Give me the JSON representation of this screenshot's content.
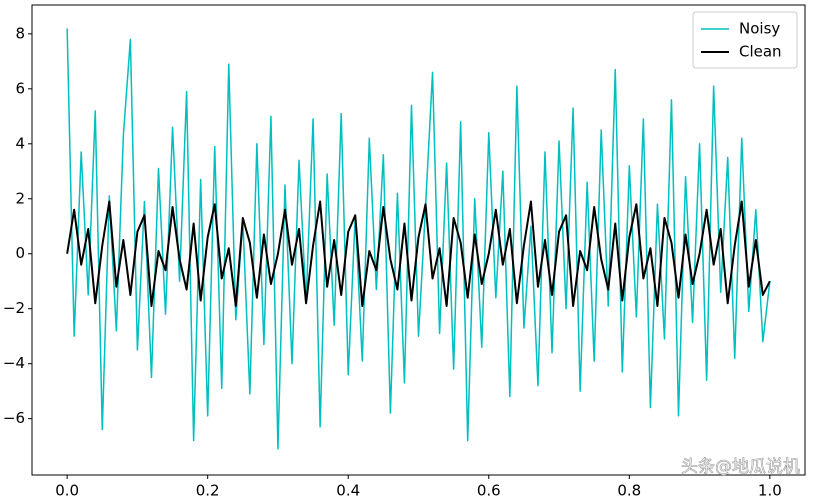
{
  "chart_data": {
    "type": "line",
    "x": [
      0,
      0.01,
      0.02,
      0.03,
      0.04,
      0.05,
      0.06,
      0.07,
      0.08,
      0.09,
      0.1,
      0.11,
      0.12,
      0.13,
      0.14,
      0.15,
      0.16,
      0.17,
      0.18,
      0.19,
      0.2,
      0.21,
      0.22,
      0.23,
      0.24,
      0.25,
      0.26,
      0.27,
      0.28,
      0.29,
      0.3,
      0.31,
      0.32,
      0.33,
      0.34,
      0.35,
      0.36,
      0.37,
      0.38,
      0.39,
      0.4,
      0.41,
      0.42,
      0.43,
      0.44,
      0.45,
      0.46,
      0.47,
      0.48,
      0.49,
      0.5,
      0.51,
      0.52,
      0.53,
      0.54,
      0.55,
      0.56,
      0.57,
      0.58,
      0.59,
      0.6,
      0.61,
      0.62,
      0.63,
      0.64,
      0.65,
      0.66,
      0.67,
      0.68,
      0.69,
      0.7,
      0.71,
      0.72,
      0.73,
      0.74,
      0.75,
      0.76,
      0.77,
      0.78,
      0.79,
      0.8,
      0.81,
      0.82,
      0.83,
      0.84,
      0.85,
      0.86,
      0.87,
      0.88,
      0.89,
      0.9,
      0.91,
      0.92,
      0.93,
      0.94,
      0.95,
      0.96,
      0.97,
      0.98,
      0.99,
      1.0
    ],
    "series": [
      {
        "name": "Noisy",
        "color": "#00bfbf",
        "width": 1.5,
        "values": [
          8.2,
          -3.0,
          3.7,
          -1.5,
          5.2,
          -6.4,
          2.1,
          -2.8,
          4.3,
          7.8,
          -3.5,
          1.9,
          -4.5,
          3.1,
          -2.2,
          4.6,
          -1.0,
          5.9,
          -6.8,
          2.7,
          -5.9,
          3.9,
          -4.9,
          6.9,
          -2.4,
          1.2,
          -5.1,
          4.0,
          -3.3,
          5.0,
          -7.1,
          2.5,
          -4.0,
          3.4,
          -1.8,
          4.9,
          -6.3,
          2.9,
          -2.6,
          5.1,
          -4.4,
          1.4,
          -3.9,
          4.2,
          -1.3,
          3.6,
          -5.8,
          2.2,
          -4.7,
          5.4,
          -3.0,
          1.7,
          6.6,
          -2.9,
          3.3,
          -4.2,
          4.8,
          -6.8,
          2.0,
          -3.4,
          4.4,
          -1.6,
          3.0,
          -5.2,
          6.1,
          -2.7,
          1.0,
          -4.8,
          3.7,
          -3.6,
          4.1,
          -2.0,
          5.3,
          -5.0,
          2.6,
          -3.9,
          4.5,
          -1.9,
          6.7,
          -4.3,
          3.2,
          -2.3,
          4.9,
          -5.6,
          1.8,
          -3.1,
          5.6,
          -5.9,
          2.8,
          -2.5,
          4.0,
          -4.6,
          6.1,
          -1.4,
          3.5,
          -3.8,
          4.2,
          -2.1,
          1.6,
          -3.2,
          -1.0
        ]
      },
      {
        "name": "Clean",
        "color": "#000000",
        "width": 2,
        "values": [
          0,
          1.6,
          -0.4,
          0.9,
          -1.8,
          0.3,
          1.9,
          -1.2,
          0.5,
          -1.5,
          0.8,
          1.4,
          -1.9,
          0.1,
          -0.6,
          1.7,
          -0.2,
          -1.3,
          1.1,
          -1.7,
          0.6,
          1.8,
          -0.9,
          0.2,
          -1.9,
          1.3,
          0.4,
          -1.6,
          0.7,
          -1.1,
          0,
          1.6,
          -0.4,
          0.9,
          -1.8,
          0.3,
          1.9,
          -1.2,
          0.5,
          -1.5,
          0.8,
          1.4,
          -1.9,
          0.1,
          -0.6,
          1.7,
          -0.2,
          -1.3,
          1.1,
          -1.7,
          0.6,
          1.8,
          -0.9,
          0.2,
          -1.9,
          1.3,
          0.4,
          -1.6,
          0.7,
          -1.1,
          0,
          1.6,
          -0.4,
          0.9,
          -1.8,
          0.3,
          1.9,
          -1.2,
          0.5,
          -1.5,
          0.8,
          1.4,
          -1.9,
          0.1,
          -0.6,
          1.7,
          -0.2,
          -1.3,
          1.1,
          -1.7,
          0.6,
          1.8,
          -0.9,
          0.2,
          -1.9,
          1.3,
          0.4,
          -1.6,
          0.7,
          -1.1,
          0,
          1.6,
          -0.4,
          0.9,
          -1.8,
          0.3,
          1.9,
          -1.2,
          0.5,
          -1.5,
          -1.0
        ]
      }
    ],
    "xlim": [
      -0.05,
      1.05
    ],
    "xticks": [
      {
        "value": 0,
        "label": "0.0"
      },
      {
        "value": 0.2,
        "label": "0.2"
      },
      {
        "value": 0.4,
        "label": "0.4"
      },
      {
        "value": 0.6,
        "label": "0.6"
      },
      {
        "value": 0.8,
        "label": "0.8"
      },
      {
        "value": 1,
        "label": "1.0"
      }
    ],
    "ylim": [
      -8.05,
      9.05
    ],
    "yticks": [
      {
        "value": -6,
        "label": "−6"
      },
      {
        "value": -4,
        "label": "−4"
      },
      {
        "value": -2,
        "label": "−2"
      },
      0,
      2,
      4,
      6,
      8
    ],
    "legend": "upper right",
    "watermark": "头条@地瓜说机"
  }
}
